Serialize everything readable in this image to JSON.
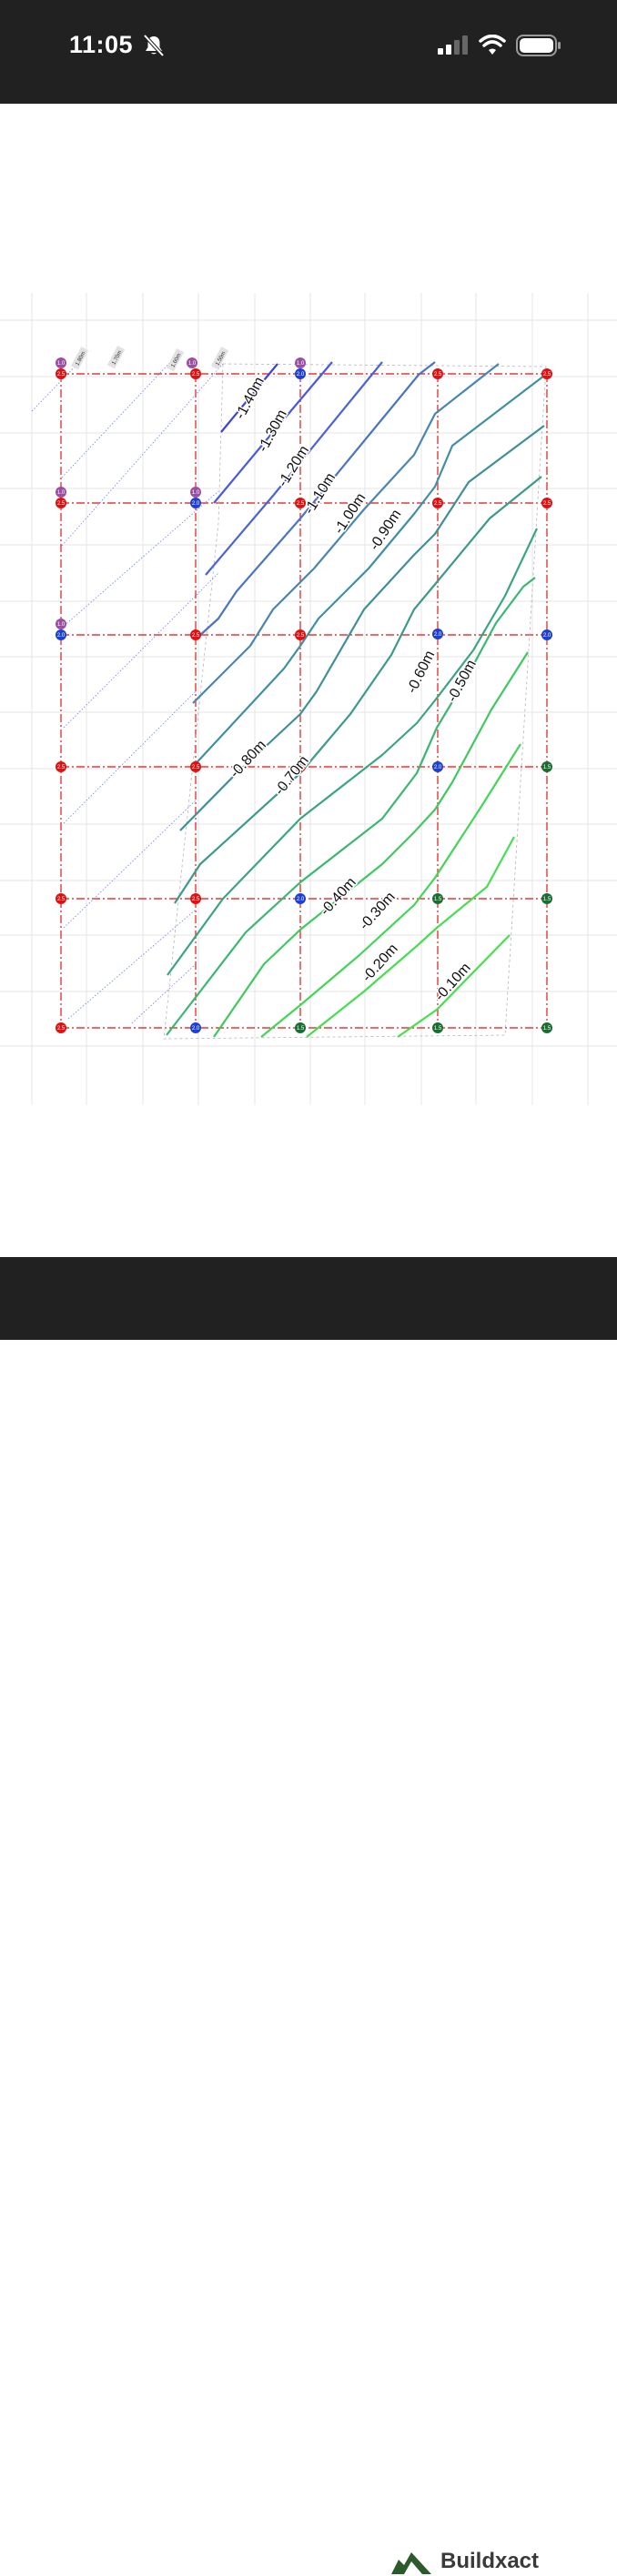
{
  "status_bar": {
    "time": "11:05",
    "icons": [
      "bell-slash-icon",
      "cellular-signal-icon",
      "wifi-icon",
      "battery-icon"
    ]
  },
  "drawing": {
    "contour_labels": [
      "-1.40m",
      "-1.30m",
      "-1.20m",
      "-1.10m",
      "-1.00m",
      "-0.90m",
      "-0.80m",
      "-0.70m",
      "-0.60m",
      "-0.50m",
      "-0.40m",
      "-0.30m",
      "-0.20m",
      "-0.10m"
    ],
    "measure_labels": [
      "1.80m",
      "1.70m",
      "1.60m",
      "1.50m"
    ],
    "marker_values": [
      "2.5",
      "2.0",
      "1.5",
      "1.0"
    ],
    "colors": {
      "grid_line": "#e4e4e4",
      "survey_line": "#e53935",
      "marker_red": "#e01010",
      "marker_blue": "#1c3fd6",
      "marker_green": "#1b6e32",
      "marker_purple": "#9b4fa3",
      "contour_deep": "#4a5ad8",
      "contour_mid": "#3f8a9e",
      "contour_shallow": "#44e04c"
    }
  },
  "footer": {
    "brand": "Buildxact"
  }
}
